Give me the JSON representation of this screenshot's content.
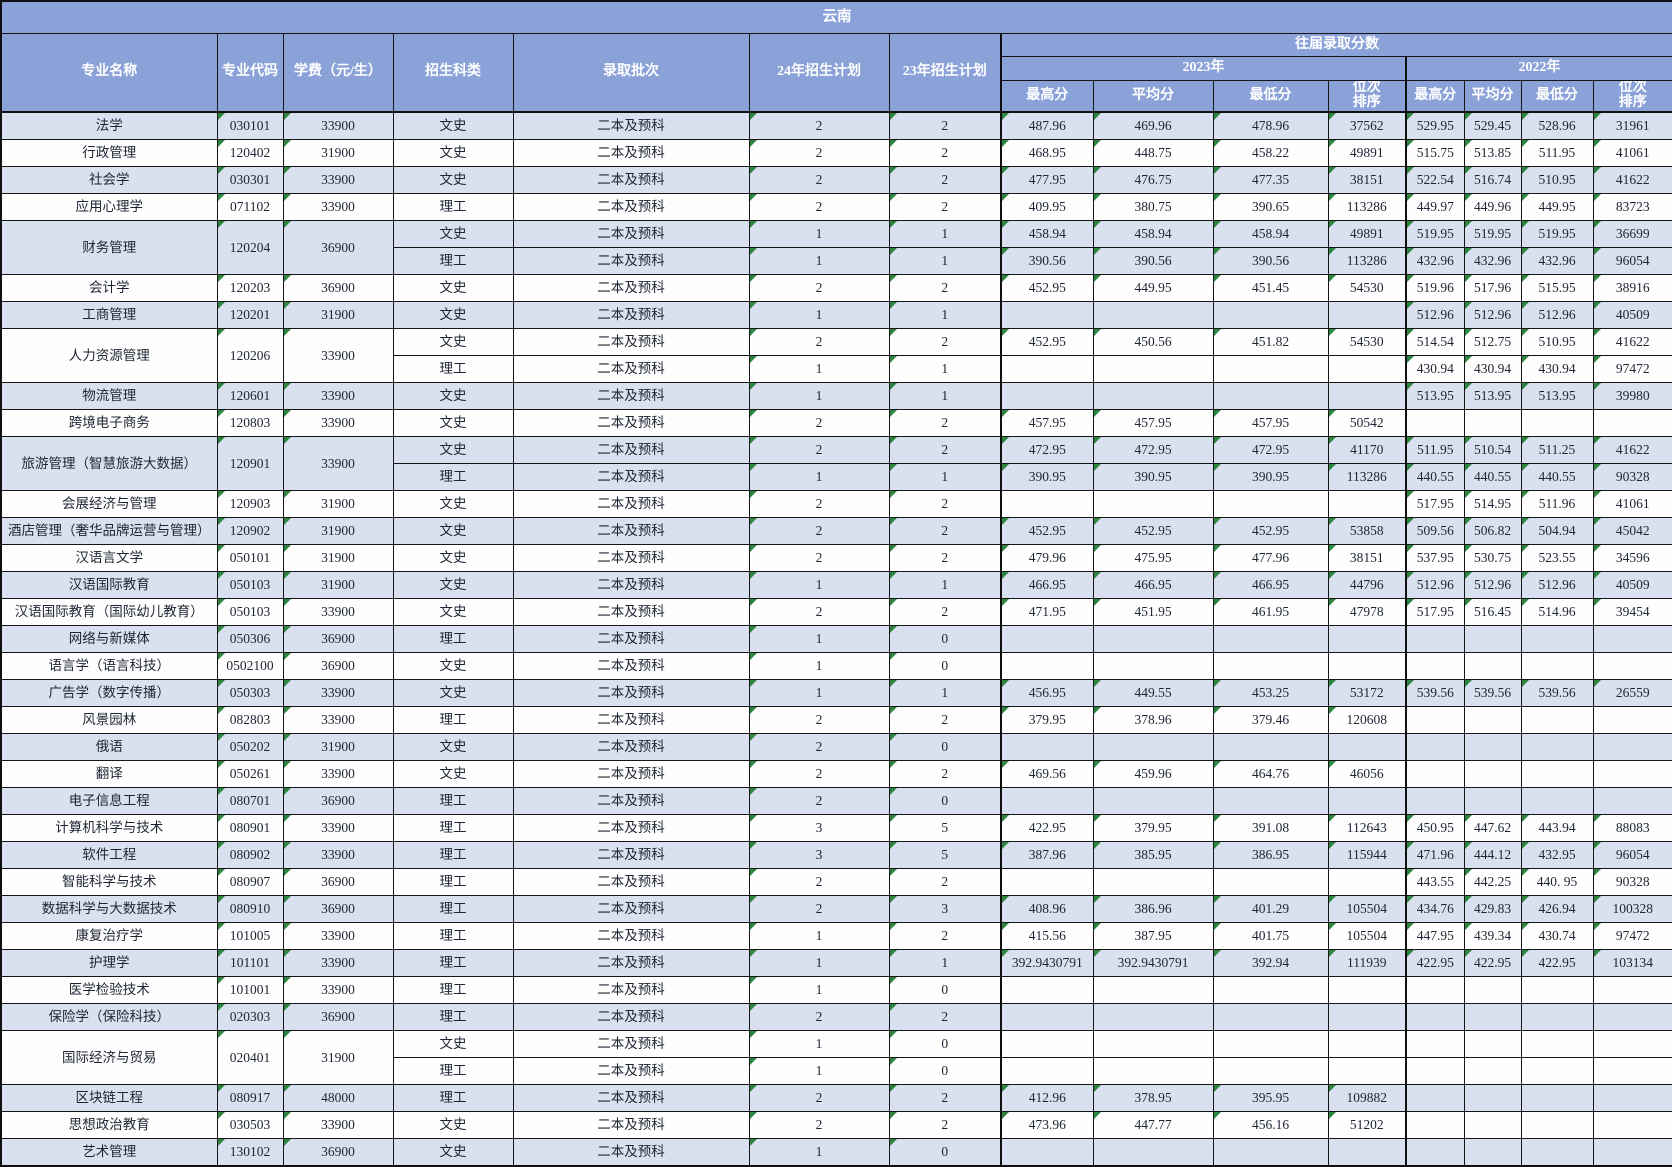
{
  "title": "云南",
  "colors": {
    "header_blue": "#8ba2d8",
    "row_blue": "#d9e0ef",
    "row_white": "#fefefe",
    "grid_line": "#161616",
    "header_text": "#ffffff",
    "cell_text": "#1d2433",
    "flag_triangle_green": "#2e8540"
  },
  "columns": {
    "major": "专业名称",
    "code": "专业代码",
    "tuition": "学费（元/生）",
    "category": "招生科类",
    "batch": "录取批次",
    "plan24": "24年招生计划",
    "plan23": "23年招生计划",
    "past_scores": "往届录取分数",
    "year2023": "2023年",
    "year2022": "2022年",
    "max": "最高分",
    "avg": "平均分",
    "min": "最低分",
    "rank": "位次排序"
  },
  "rows": [
    {
      "major": "法学",
      "code": "030101",
      "tuition": "33900",
      "span": 1,
      "category": "文史",
      "batch": "二本及预科",
      "plan24": "2",
      "plan23": "2",
      "scores": [
        "487.96",
        "469.96",
        "478.96",
        "37562",
        "529.95",
        "529.45",
        "528.96",
        "31961"
      ],
      "shade": "blue"
    },
    {
      "major": "行政管理",
      "code": "120402",
      "tuition": "31900",
      "span": 1,
      "category": "文史",
      "batch": "二本及预科",
      "plan24": "2",
      "plan23": "2",
      "scores": [
        "468.95",
        "448.75",
        "458.22",
        "49891",
        "515.75",
        "513.85",
        "511.95",
        "41061"
      ],
      "shade": "white"
    },
    {
      "major": "社会学",
      "code": "030301",
      "tuition": "33900",
      "span": 1,
      "category": "文史",
      "batch": "二本及预科",
      "plan24": "2",
      "plan23": "2",
      "scores": [
        "477.95",
        "476.75",
        "477.35",
        "38151",
        "522.54",
        "516.74",
        "510.95",
        "41622"
      ],
      "shade": "blue"
    },
    {
      "major": "应用心理学",
      "code": "071102",
      "tuition": "33900",
      "span": 1,
      "category": "理工",
      "batch": "二本及预科",
      "plan24": "2",
      "plan23": "2",
      "scores": [
        "409.95",
        "380.75",
        "390.65",
        "113286",
        "449.97",
        "449.96",
        "449.95",
        "83723"
      ],
      "shade": "white"
    },
    {
      "major": "财务管理",
      "code": "120204",
      "tuition": "36900",
      "span": 2,
      "category": "文史",
      "batch": "二本及预科",
      "plan24": "1",
      "plan23": "1",
      "scores": [
        "458.94",
        "458.94",
        "458.94",
        "49891",
        "519.95",
        "519.95",
        "519.95",
        "36699"
      ],
      "shade": "blue"
    },
    {
      "cont": true,
      "category": "理工",
      "batch": "二本及预科",
      "plan24": "1",
      "plan23": "1",
      "scores": [
        "390.56",
        "390.56",
        "390.56",
        "113286",
        "432.96",
        "432.96",
        "432.96",
        "96054"
      ],
      "shade": "blue"
    },
    {
      "major": "会计学",
      "code": "120203",
      "tuition": "36900",
      "span": 1,
      "category": "文史",
      "batch": "二本及预科",
      "plan24": "2",
      "plan23": "2",
      "scores": [
        "452.95",
        "449.95",
        "451.45",
        "54530",
        "519.96",
        "517.96",
        "515.95",
        "38916"
      ],
      "shade": "white"
    },
    {
      "major": "工商管理",
      "code": "120201",
      "tuition": "31900",
      "span": 1,
      "category": "文史",
      "batch": "二本及预科",
      "plan24": "1",
      "plan23": "1",
      "scores": [
        "",
        "",
        "",
        "",
        "512.96",
        "512.96",
        "512.96",
        "40509"
      ],
      "shade": "blue"
    },
    {
      "major": "人力资源管理",
      "code": "120206",
      "tuition": "33900",
      "span": 2,
      "category": "文史",
      "batch": "二本及预科",
      "plan24": "2",
      "plan23": "2",
      "scores": [
        "452.95",
        "450.56",
        "451.82",
        "54530",
        "514.54",
        "512.75",
        "510.95",
        "41622"
      ],
      "shade": "white"
    },
    {
      "cont": true,
      "category": "理工",
      "batch": "二本及预科",
      "plan24": "1",
      "plan23": "1",
      "scores": [
        "",
        "",
        "",
        "",
        "430.94",
        "430.94",
        "430.94",
        "97472"
      ],
      "shade": "white"
    },
    {
      "major": "物流管理",
      "code": "120601",
      "tuition": "33900",
      "span": 1,
      "category": "文史",
      "batch": "二本及预科",
      "plan24": "1",
      "plan23": "1",
      "scores": [
        "",
        "",
        "",
        "",
        "513.95",
        "513.95",
        "513.95",
        "39980"
      ],
      "shade": "blue"
    },
    {
      "major": "跨境电子商务",
      "code": "120803",
      "tuition": "33900",
      "span": 1,
      "category": "文史",
      "batch": "二本及预科",
      "plan24": "2",
      "plan23": "2",
      "scores": [
        "457.95",
        "457.95",
        "457.95",
        "50542",
        "",
        "",
        "",
        ""
      ],
      "shade": "white"
    },
    {
      "major": "旅游管理（智慧旅游大数据）",
      "code": "120901",
      "tuition": "33900",
      "span": 2,
      "category": "文史",
      "batch": "二本及预科",
      "plan24": "2",
      "plan23": "2",
      "scores": [
        "472.95",
        "472.95",
        "472.95",
        "41170",
        "511.95",
        "510.54",
        "511.25",
        "41622"
      ],
      "shade": "blue"
    },
    {
      "cont": true,
      "category": "理工",
      "batch": "二本及预科",
      "plan24": "1",
      "plan23": "1",
      "scores": [
        "390.95",
        "390.95",
        "390.95",
        "113286",
        "440.55",
        "440.55",
        "440.55",
        "90328"
      ],
      "shade": "blue"
    },
    {
      "major": "会展经济与管理",
      "code": "120903",
      "tuition": "31900",
      "span": 1,
      "category": "文史",
      "batch": "二本及预科",
      "plan24": "2",
      "plan23": "2",
      "scores": [
        "",
        "",
        "",
        "",
        "517.95",
        "514.95",
        "511.96",
        "41061"
      ],
      "shade": "white"
    },
    {
      "major": "酒店管理（奢华品牌运营与管理）",
      "code": "120902",
      "tuition": "31900",
      "span": 1,
      "category": "文史",
      "batch": "二本及预科",
      "plan24": "2",
      "plan23": "2",
      "scores": [
        "452.95",
        "452.95",
        "452.95",
        "53858",
        "509.56",
        "506.82",
        "504.94",
        "45042"
      ],
      "shade": "blue"
    },
    {
      "major": "汉语言文学",
      "code": "050101",
      "tuition": "31900",
      "span": 1,
      "category": "文史",
      "batch": "二本及预科",
      "plan24": "2",
      "plan23": "2",
      "scores": [
        "479.96",
        "475.95",
        "477.96",
        "38151",
        "537.95",
        "530.75",
        "523.55",
        "34596"
      ],
      "shade": "white"
    },
    {
      "major": "汉语国际教育",
      "code": "050103",
      "tuition": "31900",
      "span": 1,
      "category": "文史",
      "batch": "二本及预科",
      "plan24": "1",
      "plan23": "1",
      "scores": [
        "466.95",
        "466.95",
        "466.95",
        "44796",
        "512.96",
        "512.96",
        "512.96",
        "40509"
      ],
      "shade": "blue"
    },
    {
      "major": "汉语国际教育（国际幼儿教育）",
      "code": "050103",
      "tuition": "33900",
      "span": 1,
      "category": "文史",
      "batch": "二本及预科",
      "plan24": "2",
      "plan23": "2",
      "scores": [
        "471.95",
        "451.95",
        "461.95",
        "47978",
        "517.95",
        "516.45",
        "514.96",
        "39454"
      ],
      "shade": "white"
    },
    {
      "major": "网络与新媒体",
      "code": "050306",
      "tuition": "36900",
      "span": 1,
      "category": "理工",
      "batch": "二本及预科",
      "plan24": "1",
      "plan23": "0",
      "scores": [
        "",
        "",
        "",
        "",
        "",
        "",
        "",
        ""
      ],
      "shade": "blue"
    },
    {
      "major": "语言学（语言科技）",
      "code": "0502100",
      "tuition": "36900",
      "span": 1,
      "category": "文史",
      "batch": "二本及预科",
      "plan24": "1",
      "plan23": "0",
      "scores": [
        "",
        "",
        "",
        "",
        "",
        "",
        "",
        ""
      ],
      "shade": "white"
    },
    {
      "major": "广告学（数字传播）",
      "code": "050303",
      "tuition": "33900",
      "span": 1,
      "category": "文史",
      "batch": "二本及预科",
      "plan24": "1",
      "plan23": "1",
      "scores": [
        "456.95",
        "449.55",
        "453.25",
        "53172",
        "539.56",
        "539.56",
        "539.56",
        "26559"
      ],
      "shade": "blue"
    },
    {
      "major": "风景园林",
      "code": "082803",
      "tuition": "33900",
      "span": 1,
      "category": "理工",
      "batch": "二本及预科",
      "plan24": "2",
      "plan23": "2",
      "scores": [
        "379.95",
        "378.96",
        "379.46",
        "120608",
        "",
        "",
        "",
        ""
      ],
      "shade": "white"
    },
    {
      "major": "俄语",
      "code": "050202",
      "tuition": "31900",
      "span": 1,
      "category": "文史",
      "batch": "二本及预科",
      "plan24": "2",
      "plan23": "0",
      "scores": [
        "",
        "",
        "",
        "",
        "",
        "",
        "",
        ""
      ],
      "shade": "blue"
    },
    {
      "major": "翻译",
      "code": "050261",
      "tuition": "33900",
      "span": 1,
      "category": "文史",
      "batch": "二本及预科",
      "plan24": "2",
      "plan23": "2",
      "scores": [
        "469.56",
        "459.96",
        "464.76",
        "46056",
        "",
        "",
        "",
        ""
      ],
      "shade": "white"
    },
    {
      "major": "电子信息工程",
      "code": "080701",
      "tuition": "36900",
      "span": 1,
      "category": "理工",
      "batch": "二本及预科",
      "plan24": "2",
      "plan23": "0",
      "scores": [
        "",
        "",
        "",
        "",
        "",
        "",
        "",
        ""
      ],
      "shade": "blue"
    },
    {
      "major": "计算机科学与技术",
      "code": "080901",
      "tuition": "33900",
      "span": 1,
      "category": "理工",
      "batch": "二本及预科",
      "plan24": "3",
      "plan23": "5",
      "scores": [
        "422.95",
        "379.95",
        "391.08",
        "112643",
        "450.95",
        "447.62",
        "443.94",
        "88083"
      ],
      "shade": "white"
    },
    {
      "major": "软件工程",
      "code": "080902",
      "tuition": "33900",
      "span": 1,
      "category": "理工",
      "batch": "二本及预科",
      "plan24": "3",
      "plan23": "5",
      "scores": [
        "387.96",
        "385.95",
        "386.95",
        "115944",
        "471.96",
        "444.12",
        "432.95",
        "96054"
      ],
      "shade": "blue"
    },
    {
      "major": "智能科学与技术",
      "code": "080907",
      "tuition": "36900",
      "span": 1,
      "category": "理工",
      "batch": "二本及预科",
      "plan24": "2",
      "plan23": "2",
      "scores": [
        "",
        "",
        "",
        "",
        "443.55",
        "442.25",
        "440. 95",
        "90328"
      ],
      "shade": "white"
    },
    {
      "major": "数据科学与大数据技术",
      "code": "080910",
      "tuition": "36900",
      "span": 1,
      "category": "理工",
      "batch": "二本及预科",
      "plan24": "2",
      "plan23": "3",
      "scores": [
        "408.96",
        "386.96",
        "401.29",
        "105504",
        "434.76",
        "429.83",
        "426.94",
        "100328"
      ],
      "shade": "blue"
    },
    {
      "major": "康复治疗学",
      "code": "101005",
      "tuition": "33900",
      "span": 1,
      "category": "理工",
      "batch": "二本及预科",
      "plan24": "1",
      "plan23": "2",
      "scores": [
        "415.56",
        "387.95",
        "401.75",
        "105504",
        "447.95",
        "439.34",
        "430.74",
        "97472"
      ],
      "shade": "white"
    },
    {
      "major": "护理学",
      "code": "101101",
      "tuition": "33900",
      "span": 1,
      "category": "理工",
      "batch": "二本及预科",
      "plan24": "1",
      "plan23": "1",
      "scores": [
        "392.9430791",
        "392.9430791",
        "392.94",
        "111939",
        "422.95",
        "422.95",
        "422.95",
        "103134"
      ],
      "shade": "blue"
    },
    {
      "major": "医学检验技术",
      "code": "101001",
      "tuition": "33900",
      "span": 1,
      "category": "理工",
      "batch": "二本及预科",
      "plan24": "1",
      "plan23": "0",
      "scores": [
        "",
        "",
        "",
        "",
        "",
        "",
        "",
        ""
      ],
      "shade": "white"
    },
    {
      "major": "保险学（保险科技）",
      "code": "020303",
      "tuition": "36900",
      "span": 1,
      "category": "理工",
      "batch": "二本及预科",
      "plan24": "2",
      "plan23": "2",
      "scores": [
        "",
        "",
        "",
        "",
        "",
        "",
        "",
        ""
      ],
      "shade": "blue"
    },
    {
      "major": "国际经济与贸易",
      "code": "020401",
      "tuition": "31900",
      "span": 2,
      "category": "文史",
      "batch": "二本及预科",
      "plan24": "1",
      "plan23": "0",
      "scores": [
        "",
        "",
        "",
        "",
        "",
        "",
        "",
        ""
      ],
      "shade": "white"
    },
    {
      "cont": true,
      "category": "理工",
      "batch": "二本及预科",
      "plan24": "1",
      "plan23": "0",
      "scores": [
        "",
        "",
        "",
        "",
        "",
        "",
        "",
        ""
      ],
      "shade": "white"
    },
    {
      "major": "区块链工程",
      "code": "080917",
      "tuition": "48000",
      "span": 1,
      "category": "理工",
      "batch": "二本及预科",
      "plan24": "2",
      "plan23": "2",
      "scores": [
        "412.96",
        "378.95",
        "395.95",
        "109882",
        "",
        "",
        "",
        ""
      ],
      "shade": "blue"
    },
    {
      "major": "思想政治教育",
      "code": "030503",
      "tuition": "33900",
      "span": 1,
      "category": "文史",
      "batch": "二本及预科",
      "plan24": "2",
      "plan23": "2",
      "scores": [
        "473.96",
        "447.77",
        "456.16",
        "51202",
        "",
        "",
        "",
        ""
      ],
      "shade": "white"
    },
    {
      "major": "艺术管理",
      "code": "130102",
      "tuition": "36900",
      "span": 1,
      "category": "文史",
      "batch": "二本及预科",
      "plan24": "1",
      "plan23": "0",
      "scores": [
        "",
        "",
        "",
        "",
        "",
        "",
        "",
        ""
      ],
      "shade": "blue"
    }
  ]
}
